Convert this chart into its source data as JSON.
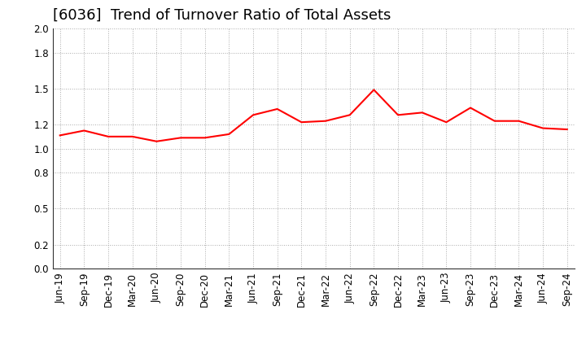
{
  "title": "[6036]  Trend of Turnover Ratio of Total Assets",
  "labels": [
    "Jun-19",
    "Sep-19",
    "Dec-19",
    "Mar-20",
    "Jun-20",
    "Sep-20",
    "Dec-20",
    "Mar-21",
    "Jun-21",
    "Sep-21",
    "Dec-21",
    "Mar-22",
    "Jun-22",
    "Sep-22",
    "Dec-22",
    "Mar-23",
    "Jun-23",
    "Sep-23",
    "Dec-23",
    "Mar-24",
    "Jun-24",
    "Sep-24"
  ],
  "values": [
    1.11,
    1.15,
    1.1,
    1.1,
    1.06,
    1.09,
    1.09,
    1.12,
    1.28,
    1.33,
    1.22,
    1.23,
    1.28,
    1.49,
    1.28,
    1.3,
    1.22,
    1.34,
    1.23,
    1.23,
    1.17,
    1.16
  ],
  "line_color": "#FF0000",
  "line_width": 1.5,
  "ylim": [
    0.0,
    2.0
  ],
  "yticks": [
    0.0,
    0.2,
    0.5,
    0.8,
    1.0,
    1.2,
    1.5,
    1.8,
    2.0
  ],
  "grid_color": "#aaaaaa",
  "grid_linestyle": ":",
  "background_color": "#ffffff",
  "title_fontsize": 13,
  "tick_fontsize": 8.5
}
